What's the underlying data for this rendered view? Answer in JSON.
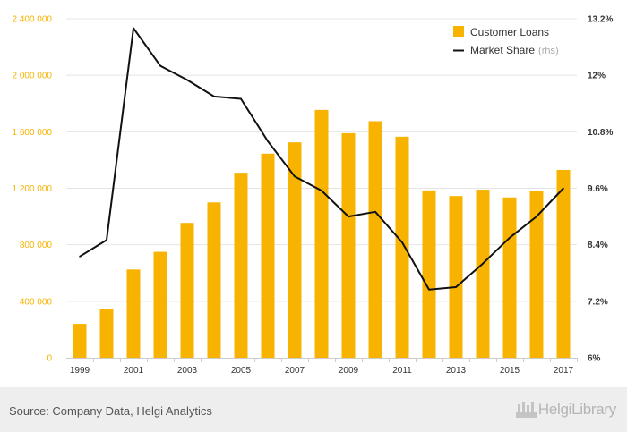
{
  "chart_data": {
    "type": "bar",
    "categories": [
      "1999",
      "2000",
      "2001",
      "2002",
      "2003",
      "2004",
      "2005",
      "2006",
      "2007",
      "2008",
      "2009",
      "2010",
      "2011",
      "2012",
      "2013",
      "2014",
      "2015",
      "2016",
      "2017"
    ],
    "x_tick_labels": [
      "1999",
      "2001",
      "2003",
      "2005",
      "2007",
      "2009",
      "2011",
      "2013",
      "2015",
      "2017"
    ],
    "series": [
      {
        "name": "Customer Loans",
        "type": "bar",
        "axis": "left",
        "color": "#f7b300",
        "values": [
          240000,
          345000,
          625000,
          750000,
          955000,
          1100000,
          1310000,
          1445000,
          1525000,
          1755000,
          1590000,
          1675000,
          1565000,
          1185000,
          1145000,
          1190000,
          1135000,
          1180000,
          1330000
        ]
      },
      {
        "name": "Market Share",
        "name_suffix": "(rhs)",
        "type": "line",
        "axis": "right",
        "color": "#111111",
        "values": [
          8.15,
          8.5,
          13.0,
          12.2,
          11.9,
          11.55,
          11.5,
          10.6,
          9.85,
          9.55,
          9.0,
          9.1,
          8.45,
          7.45,
          7.5,
          8.0,
          8.55,
          9.0,
          9.6
        ]
      }
    ],
    "y_left": {
      "min": 0,
      "max": 2400000,
      "ticks": [
        "0",
        "400 000",
        "800 000",
        "1 200 000",
        "1 600 000",
        "2 000 000",
        "2 400 000"
      ],
      "color": "#f7b300"
    },
    "y_right": {
      "min": 6,
      "max": 13.2,
      "ticks": [
        "6%",
        "7.2%",
        "8.4%",
        "9.6%",
        "10.8%",
        "12%",
        "13.2%"
      ]
    },
    "grid": true,
    "legend_position": "top-right"
  },
  "footer": {
    "source": "Source: Company Data, Helgi Analytics",
    "logo_text": "HelgiLibrary"
  }
}
